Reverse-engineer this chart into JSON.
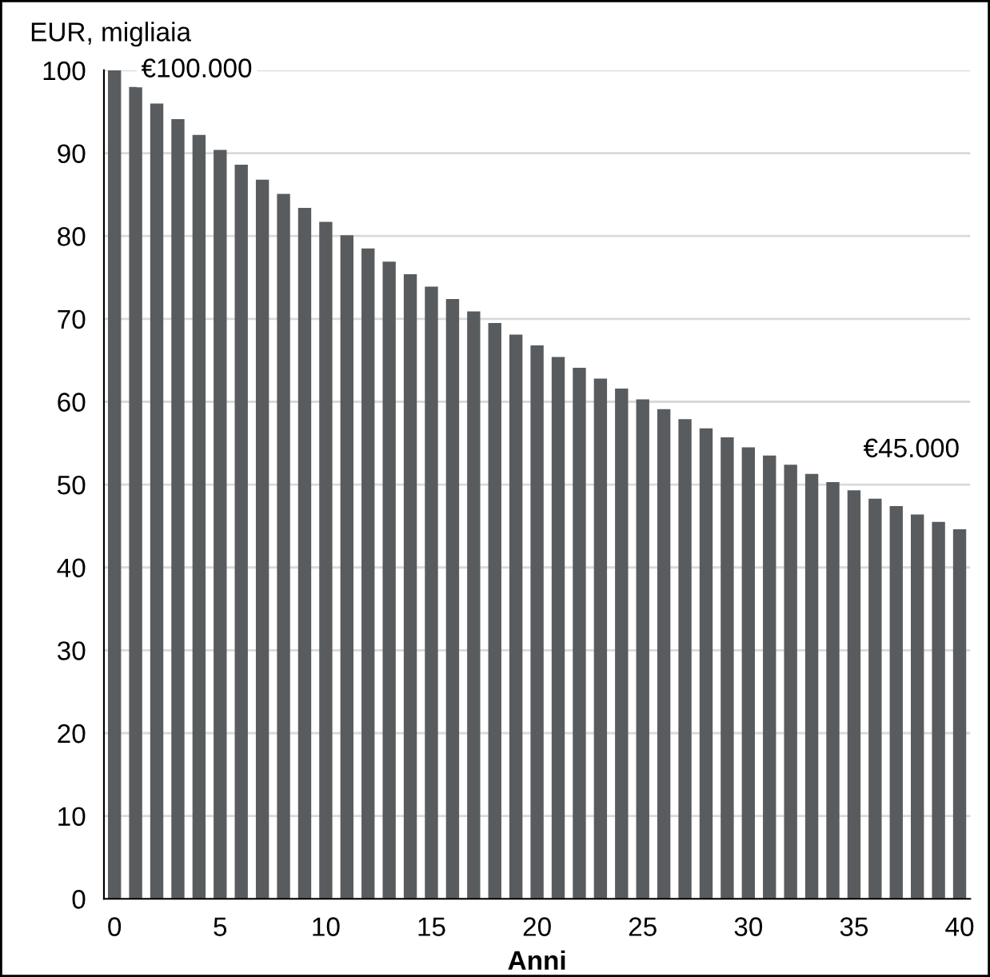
{
  "chart_data": {
    "type": "bar",
    "xlabel": "Anni",
    "ylabel": "EUR, migliaia",
    "x": [
      0,
      1,
      2,
      3,
      4,
      5,
      6,
      7,
      8,
      9,
      10,
      11,
      12,
      13,
      14,
      15,
      16,
      17,
      18,
      19,
      20,
      21,
      22,
      23,
      24,
      25,
      26,
      27,
      28,
      29,
      30,
      31,
      32,
      33,
      34,
      35,
      36,
      37,
      38,
      39,
      40
    ],
    "values": [
      100,
      98,
      96,
      94.1,
      92.2,
      90.4,
      88.6,
      86.8,
      85.1,
      83.4,
      81.7,
      80.1,
      78.5,
      76.9,
      75.4,
      73.9,
      72.4,
      70.9,
      69.5,
      68.1,
      66.8,
      65.4,
      64.1,
      62.8,
      61.6,
      60.3,
      59.1,
      57.9,
      56.8,
      55.7,
      54.5,
      53.5,
      52.4,
      51.3,
      50.3,
      49.3,
      48.3,
      47.4,
      46.4,
      45.5,
      44.6
    ],
    "color": "#595c5f",
    "xlim": [
      -0.5,
      40.5
    ],
    "xticks": [
      0,
      5,
      10,
      15,
      20,
      25,
      30,
      35,
      40
    ],
    "ylim": [
      0,
      100
    ],
    "yticks": [
      0,
      10,
      20,
      30,
      40,
      50,
      60,
      70,
      80,
      90,
      100
    ],
    "grid": "y",
    "annotations": [
      {
        "text": "€100.000",
        "x": 0,
        "y": 100
      },
      {
        "text": "€45.000",
        "x": 40,
        "y": 44.6
      }
    ]
  }
}
